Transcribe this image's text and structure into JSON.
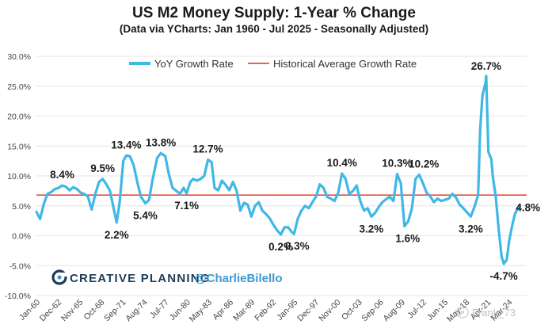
{
  "title": "US M2 Money Supply: 1-Year % Change",
  "subtitle": "(Data via YCharts: Jan 1960 - Jul 2025 - Seasonally Adjusted)",
  "legend": {
    "series_label": "YoY Growth Rate",
    "average_label": "Historical Average Growth Rate",
    "placement": "top"
  },
  "branding": {
    "company": "CREATIVE PLANNING",
    "handle": "@CharlieBilello",
    "watermark": "Frank_73"
  },
  "colors": {
    "series": "#3fb8e6",
    "average": "#e0503a",
    "gridline": "#e4e4e4",
    "brand": "#1f3b57",
    "handle": "#3d9ad1"
  },
  "chart_data": {
    "type": "line",
    "title": "US M2 Money Supply: 1-Year % Change",
    "subtitle": "(Data via YCharts: Jan 1960 - Jul 2025 - Seasonally Adjusted)",
    "ylim": [
      -10,
      30
    ],
    "y_ticks": [
      -10,
      -5,
      0,
      5,
      10,
      15,
      20,
      25,
      30
    ],
    "y_tick_labels": [
      "-10.0%",
      "-5.0%",
      "0.0%",
      "5.0%",
      "10.0%",
      "15.0%",
      "20.0%",
      "25.0%",
      "30.0%"
    ],
    "x_tick_labels": [
      "Jan-60",
      "Dec-62",
      "Nov-65",
      "Oct-68",
      "Sep-71",
      "Aug-74",
      "Jul-77",
      "Jun-80",
      "May-83",
      "Apr-86",
      "Mar-89",
      "Feb-92",
      "Jan-95",
      "Dec-97",
      "Nov-00",
      "Oct-03",
      "Sep-06",
      "Aug-09",
      "Jul-12",
      "Jun-15",
      "May-18",
      "Apr-21",
      "Mar-24"
    ],
    "grid": true,
    "average_growth_rate": 6.8,
    "series": [
      {
        "name": "YoY Growth Rate",
        "points": [
          [
            1960.0,
            4.0
          ],
          [
            1960.5,
            2.8
          ],
          [
            1961.0,
            5.3
          ],
          [
            1961.5,
            7.0
          ],
          [
            1962.0,
            7.3
          ],
          [
            1962.5,
            7.8
          ],
          [
            1963.0,
            8.0
          ],
          [
            1963.5,
            8.4
          ],
          [
            1964.0,
            8.2
          ],
          [
            1964.5,
            7.6
          ],
          [
            1965.0,
            8.1
          ],
          [
            1965.5,
            7.8
          ],
          [
            1966.0,
            7.2
          ],
          [
            1966.5,
            7.0
          ],
          [
            1967.0,
            6.5
          ],
          [
            1967.5,
            4.4
          ],
          [
            1968.0,
            7.0
          ],
          [
            1968.5,
            9.0
          ],
          [
            1969.0,
            9.5
          ],
          [
            1969.5,
            8.6
          ],
          [
            1970.0,
            7.5
          ],
          [
            1970.5,
            4.5
          ],
          [
            1970.9,
            2.2
          ],
          [
            1971.3,
            5.5
          ],
          [
            1971.8,
            12.5
          ],
          [
            1972.2,
            13.4
          ],
          [
            1972.7,
            13.3
          ],
          [
            1973.2,
            11.8
          ],
          [
            1973.7,
            9.0
          ],
          [
            1974.2,
            6.5
          ],
          [
            1974.8,
            5.4
          ],
          [
            1975.3,
            6.0
          ],
          [
            1975.8,
            9.5
          ],
          [
            1976.4,
            13.0
          ],
          [
            1976.9,
            13.8
          ],
          [
            1977.5,
            13.3
          ],
          [
            1978.0,
            10.2
          ],
          [
            1978.5,
            8.0
          ],
          [
            1979.0,
            7.5
          ],
          [
            1979.5,
            7.0
          ],
          [
            1980.0,
            8.0
          ],
          [
            1980.4,
            7.1
          ],
          [
            1980.9,
            9.0
          ],
          [
            1981.3,
            9.5
          ],
          [
            1981.8,
            9.2
          ],
          [
            1982.3,
            9.5
          ],
          [
            1982.8,
            10.0
          ],
          [
            1983.3,
            12.7
          ],
          [
            1983.8,
            12.3
          ],
          [
            1984.2,
            8.0
          ],
          [
            1984.7,
            7.6
          ],
          [
            1985.2,
            9.2
          ],
          [
            1985.7,
            8.5
          ],
          [
            1986.2,
            7.6
          ],
          [
            1986.7,
            9.0
          ],
          [
            1987.2,
            7.5
          ],
          [
            1987.7,
            4.2
          ],
          [
            1988.2,
            5.5
          ],
          [
            1988.7,
            5.2
          ],
          [
            1989.2,
            3.2
          ],
          [
            1989.7,
            5.0
          ],
          [
            1990.2,
            5.6
          ],
          [
            1990.7,
            4.2
          ],
          [
            1991.2,
            3.6
          ],
          [
            1991.7,
            2.9
          ],
          [
            1992.2,
            1.8
          ],
          [
            1992.7,
            0.9
          ],
          [
            1993.2,
            0.2
          ],
          [
            1993.7,
            1.4
          ],
          [
            1994.2,
            1.4
          ],
          [
            1994.7,
            0.6
          ],
          [
            1995.0,
            0.3
          ],
          [
            1995.5,
            2.8
          ],
          [
            1996.0,
            4.2
          ],
          [
            1996.5,
            5.0
          ],
          [
            1997.0,
            4.6
          ],
          [
            1997.5,
            5.6
          ],
          [
            1998.0,
            6.6
          ],
          [
            1998.5,
            8.6
          ],
          [
            1999.0,
            8.0
          ],
          [
            1999.5,
            6.5
          ],
          [
            2000.0,
            6.2
          ],
          [
            2000.5,
            5.8
          ],
          [
            2001.0,
            7.2
          ],
          [
            2001.5,
            10.4
          ],
          [
            2002.0,
            9.5
          ],
          [
            2002.5,
            7.0
          ],
          [
            2003.0,
            7.5
          ],
          [
            2003.5,
            8.4
          ],
          [
            2004.0,
            5.8
          ],
          [
            2004.5,
            4.2
          ],
          [
            2005.0,
            4.6
          ],
          [
            2005.5,
            3.2
          ],
          [
            2006.0,
            3.8
          ],
          [
            2006.5,
            4.8
          ],
          [
            2007.0,
            5.6
          ],
          [
            2007.5,
            6.1
          ],
          [
            2008.0,
            6.5
          ],
          [
            2008.5,
            5.8
          ],
          [
            2009.0,
            10.3
          ],
          [
            2009.5,
            8.8
          ],
          [
            2010.0,
            1.6
          ],
          [
            2010.5,
            2.4
          ],
          [
            2011.0,
            4.5
          ],
          [
            2011.5,
            9.5
          ],
          [
            2012.0,
            10.2
          ],
          [
            2012.5,
            8.8
          ],
          [
            2013.0,
            7.2
          ],
          [
            2013.5,
            6.6
          ],
          [
            2014.0,
            5.6
          ],
          [
            2014.5,
            6.2
          ],
          [
            2015.0,
            5.8
          ],
          [
            2015.5,
            6.0
          ],
          [
            2016.0,
            6.2
          ],
          [
            2016.5,
            7.0
          ],
          [
            2017.0,
            6.4
          ],
          [
            2017.5,
            5.2
          ],
          [
            2018.0,
            4.6
          ],
          [
            2018.5,
            3.9
          ],
          [
            2019.0,
            3.2
          ],
          [
            2019.5,
            4.8
          ],
          [
            2020.0,
            6.8
          ],
          [
            2020.3,
            18.0
          ],
          [
            2020.6,
            23.5
          ],
          [
            2021.0,
            25.5
          ],
          [
            2021.1,
            26.7
          ],
          [
            2021.4,
            14.0
          ],
          [
            2021.8,
            12.8
          ],
          [
            2022.0,
            10.0
          ],
          [
            2022.4,
            6.5
          ],
          [
            2022.8,
            1.0
          ],
          [
            2023.2,
            -3.5
          ],
          [
            2023.5,
            -4.7
          ],
          [
            2023.9,
            -4.0
          ],
          [
            2024.2,
            -1.0
          ],
          [
            2024.6,
            1.5
          ],
          [
            2025.0,
            3.6
          ],
          [
            2025.5,
            4.8
          ]
        ]
      }
    ],
    "annotations": [
      {
        "text": "8.4%",
        "x": 1963.5,
        "y": 8.4
      },
      {
        "text": "9.5%",
        "x": 1969.0,
        "y": 9.5
      },
      {
        "text": "2.2%",
        "x": 1970.9,
        "y": 2.2
      },
      {
        "text": "13.4%",
        "x": 1972.2,
        "y": 13.4
      },
      {
        "text": "5.4%",
        "x": 1974.8,
        "y": 5.4
      },
      {
        "text": "13.8%",
        "x": 1976.9,
        "y": 13.8
      },
      {
        "text": "7.1%",
        "x": 1980.4,
        "y": 7.1
      },
      {
        "text": "12.7%",
        "x": 1983.3,
        "y": 12.7
      },
      {
        "text": "0.2%",
        "x": 1993.2,
        "y": 0.2
      },
      {
        "text": "0.3%",
        "x": 1995.0,
        "y": 0.3
      },
      {
        "text": "10.4%",
        "x": 2001.5,
        "y": 10.4
      },
      {
        "text": "3.2%",
        "x": 2005.5,
        "y": 3.2
      },
      {
        "text": "10.3%",
        "x": 2009.0,
        "y": 10.3
      },
      {
        "text": "1.6%",
        "x": 2010.0,
        "y": 1.6
      },
      {
        "text": "10.2%",
        "x": 2012.0,
        "y": 10.2
      },
      {
        "text": "3.2%",
        "x": 2019.0,
        "y": 3.2
      },
      {
        "text": "26.7%",
        "x": 2021.1,
        "y": 26.7
      },
      {
        "text": "-4.7%",
        "x": 2023.5,
        "y": -4.7
      },
      {
        "text": "4.8%",
        "x": 2025.5,
        "y": 4.8
      }
    ]
  }
}
